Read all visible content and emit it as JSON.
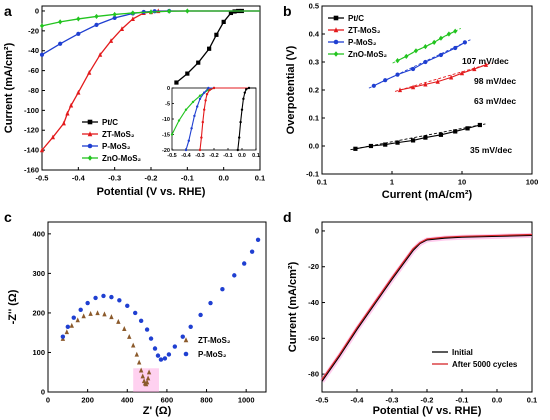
{
  "chart_data": [
    {
      "panel": "a",
      "type": "line",
      "xlabel": "Potential (V vs. RHE)",
      "ylabel": "Current (mA/cm²)",
      "xlim": [
        -0.5,
        0.1
      ],
      "ylim": [
        -160,
        5
      ],
      "xticks": [
        "-0.5",
        "-0.4",
        "-0.3",
        "-0.2",
        "-0.1",
        "0.0",
        "0.1"
      ],
      "yticks": [
        "-160",
        "-140",
        "-120",
        "-100",
        "-80",
        "-60",
        "-40",
        "-20",
        "0"
      ],
      "xtick_values": [
        -0.5,
        -0.4,
        -0.3,
        -0.2,
        -0.1,
        0.0,
        0.1
      ],
      "ytick_values": [
        -160,
        -140,
        -120,
        -100,
        -80,
        -60,
        -40,
        -20,
        0
      ],
      "legend_position": "bottom-left",
      "series": [
        {
          "name": "Pt/C",
          "color": "#000000",
          "marker": "square",
          "x": [
            -0.13,
            -0.1,
            -0.07,
            -0.04,
            -0.02,
            0.0,
            0.02,
            0.03,
            0.04,
            0.05
          ],
          "y": [
            -72,
            -63,
            -52,
            -38,
            -24,
            -11,
            -2,
            -0.5,
            0,
            0
          ]
        },
        {
          "name": "ZT-MoS₂",
          "color": "#e31a1c",
          "marker": "triangle",
          "x": [
            -0.5,
            -0.47,
            -0.44,
            -0.43,
            -0.42,
            -0.4,
            -0.37,
            -0.34,
            -0.31,
            -0.28,
            -0.25,
            -0.22,
            -0.2,
            -0.18,
            0.1
          ],
          "y": [
            -140,
            -127,
            -113,
            -103,
            -95,
            -82,
            -62,
            -44,
            -30,
            -18,
            -8,
            -2,
            -1,
            0,
            0
          ]
        },
        {
          "name": "P-MoS₂",
          "color": "#1f3fd1",
          "marker": "circle",
          "x": [
            -0.5,
            -0.45,
            -0.4,
            -0.35,
            -0.3,
            -0.25,
            -0.22,
            -0.19,
            -0.15,
            0.1
          ],
          "y": [
            -44,
            -33,
            -23,
            -14,
            -7,
            -2.5,
            -1,
            -0.3,
            0,
            0
          ]
        },
        {
          "name": "ZnO-MoS₂",
          "color": "#22c41f",
          "marker": "diamond",
          "x": [
            -0.5,
            -0.45,
            -0.4,
            -0.35,
            -0.3,
            -0.25,
            -0.2,
            -0.15,
            -0.1,
            0.1
          ],
          "y": [
            -15,
            -11,
            -8,
            -5.5,
            -3.5,
            -2,
            -1,
            -0.3,
            0,
            0
          ]
        }
      ],
      "inset": {
        "xlim": [
          -0.5,
          0.1
        ],
        "ylim": [
          -20,
          0
        ],
        "xticks": [
          "-0.5",
          "-0.4",
          "-0.3",
          "-0.2",
          "-0.1",
          "0.0",
          "0.1"
        ],
        "xtick_values": [
          -0.5,
          -0.4,
          -0.3,
          -0.2,
          -0.1,
          0.0,
          0.1
        ],
        "yticks": [
          "0",
          "-5",
          "-10",
          "-15",
          "-20"
        ],
        "ytick_values": [
          0,
          -5,
          -10,
          -15,
          -20
        ],
        "series": [
          {
            "name": "ZnO-MoS₂",
            "color": "#22c41f",
            "x": [
              -0.5,
              -0.45,
              -0.4,
              -0.35,
              -0.3,
              -0.27,
              -0.24,
              -0.22,
              -0.2,
              0.1
            ],
            "y": [
              -15,
              -10.5,
              -7,
              -4.5,
              -2.5,
              -1.5,
              -0.7,
              -0.3,
              0,
              0
            ]
          },
          {
            "name": "P-MoS₂",
            "color": "#1f3fd1",
            "x": [
              -0.4,
              -0.38,
              -0.36,
              -0.34,
              -0.32,
              -0.3,
              -0.27,
              -0.24,
              0.1
            ],
            "y": [
              -20,
              -17,
              -13,
              -9,
              -6,
              -3.5,
              -1.5,
              0,
              0
            ]
          },
          {
            "name": "ZT-MoS₂",
            "color": "#e31a1c",
            "x": [
              -0.3,
              -0.29,
              -0.28,
              -0.27,
              -0.26,
              -0.25,
              -0.23,
              -0.2,
              0.1
            ],
            "y": [
              -20,
              -16,
              -11,
              -7,
              -4,
              -2,
              -0.6,
              0,
              0
            ]
          },
          {
            "name": "Pt/C",
            "color": "#000000",
            "x": [
              -0.03,
              -0.02,
              -0.01,
              0.0,
              0.01,
              0.02,
              0.03,
              0.05,
              0.1
            ],
            "y": [
              -20,
              -16,
              -11,
              -7,
              -3.5,
              -1.5,
              -0.4,
              0,
              0
            ]
          }
        ]
      }
    },
    {
      "panel": "b",
      "type": "scatter",
      "xlabel": "Current (mA/cm²)",
      "ylabel": "Overpotential (V)",
      "xscale": "log",
      "xlim": [
        0.1,
        100
      ],
      "ylim": [
        -0.1,
        0.5
      ],
      "xticks": [
        "0.1",
        "1",
        "10",
        "100"
      ],
      "xtick_values": [
        0.1,
        1,
        10,
        100
      ],
      "yticks": [
        "-0.1",
        "0.0",
        "0.1",
        "0.2",
        "0.3",
        "0.4",
        "0.5"
      ],
      "ytick_values": [
        -0.1,
        0.0,
        0.1,
        0.2,
        0.3,
        0.4,
        0.5
      ],
      "legend_position": "top-left",
      "series": [
        {
          "name": "Pt/C",
          "color": "#000000",
          "x": [
            0.3,
            0.5,
            0.8,
            1.2,
            2,
            3,
            5,
            8,
            12,
            18
          ],
          "y": [
            -0.01,
            0.0,
            0.005,
            0.012,
            0.02,
            0.03,
            0.04,
            0.052,
            0.063,
            0.075
          ],
          "slope_label": "35 mV/dec"
        },
        {
          "name": "ZT-MoS₂",
          "color": "#e31a1c",
          "x": [
            1.3,
            2,
            3,
            4.5,
            7,
            10,
            15,
            22
          ],
          "y": [
            0.2,
            0.21,
            0.22,
            0.23,
            0.245,
            0.26,
            0.275,
            0.29
          ],
          "slope_label": "63 mV/dec"
        },
        {
          "name": "P-MoS₂",
          "color": "#1f3fd1",
          "x": [
            0.55,
            0.8,
            1.2,
            2,
            3,
            5,
            8,
            11
          ],
          "y": [
            0.215,
            0.235,
            0.255,
            0.275,
            0.3,
            0.325,
            0.35,
            0.37
          ],
          "slope_label": "98 mV/dec"
        },
        {
          "name": "ZnO-MoS₂",
          "color": "#22c41f",
          "x": [
            1.2,
            1.6,
            2.2,
            3,
            4,
            5,
            6.5,
            8
          ],
          "y": [
            0.305,
            0.32,
            0.34,
            0.355,
            0.37,
            0.385,
            0.4,
            0.41
          ],
          "slope_label": "107 mV/dec"
        }
      ]
    },
    {
      "panel": "c",
      "type": "scatter",
      "xlabel": "Z' (Ω)",
      "ylabel": "-Z'' (Ω)",
      "xlim": [
        0,
        1100
      ],
      "ylim": [
        0,
        430
      ],
      "xticks": [
        "0",
        "200",
        "400",
        "600",
        "800",
        "1000"
      ],
      "xtick_values": [
        0,
        200,
        400,
        600,
        800,
        1000
      ],
      "yticks": [
        "0",
        "100",
        "200",
        "300",
        "400"
      ],
      "ytick_values": [
        0,
        100,
        200,
        300,
        400
      ],
      "legend_position": "bottom-right",
      "series": [
        {
          "name": "ZT-MoS₂",
          "color": "#8b5a2b",
          "marker": "triangle",
          "x": [
            75,
            95,
            120,
            150,
            180,
            215,
            250,
            285,
            320,
            355,
            385,
            410,
            430,
            448,
            460,
            470,
            478,
            485,
            490,
            495,
            500,
            505,
            510
          ],
          "y": [
            135,
            152,
            168,
            182,
            192,
            198,
            200,
            197,
            190,
            178,
            160,
            140,
            118,
            95,
            75,
            55,
            40,
            28,
            22,
            20,
            25,
            35,
            50
          ]
        },
        {
          "name": "P-MoS₂",
          "color": "#1f3fd1",
          "marker": "circle",
          "x": [
            75,
            100,
            130,
            165,
            200,
            240,
            280,
            320,
            360,
            400,
            440,
            470,
            500,
            520,
            540,
            555,
            570,
            590,
            610,
            640,
            680,
            720,
            770,
            820,
            880,
            940,
            990,
            1030,
            1060
          ],
          "y": [
            140,
            165,
            188,
            208,
            225,
            238,
            243,
            240,
            232,
            218,
            200,
            180,
            158,
            135,
            110,
            92,
            82,
            85,
            95,
            115,
            140,
            165,
            195,
            225,
            260,
            295,
            325,
            355,
            385
          ]
        }
      ]
    },
    {
      "panel": "d",
      "type": "line",
      "xlabel": "Potential (V vs. RHE)",
      "ylabel": "Current (mA/cm²)",
      "xlim": [
        -0.5,
        0.1
      ],
      "ylim": [
        -90,
        5
      ],
      "xticks": [
        "-0.5",
        "-0.4",
        "-0.3",
        "-0.2",
        "-0.1",
        "0.0",
        "0.1"
      ],
      "xtick_values": [
        -0.5,
        -0.4,
        -0.3,
        -0.2,
        -0.1,
        0.0,
        0.1
      ],
      "yticks": [
        "-80",
        "-60",
        "-40",
        "-20",
        "0"
      ],
      "ytick_values": [
        -80,
        -60,
        -40,
        -20,
        0
      ],
      "legend_position": "bottom-right",
      "series": [
        {
          "name": "Initial",
          "color": "#000000",
          "x": [
            -0.5,
            -0.45,
            -0.4,
            -0.35,
            -0.3,
            -0.27,
            -0.24,
            -0.22,
            -0.2,
            -0.15,
            -0.1,
            0.0,
            0.1
          ],
          "y": [
            -84,
            -70,
            -55,
            -41,
            -27,
            -19,
            -11,
            -7,
            -5,
            -4,
            -3.5,
            -3,
            -2.5
          ]
        },
        {
          "name": "After 5000 cycles",
          "color": "#d62728",
          "x": [
            -0.5,
            -0.45,
            -0.4,
            -0.35,
            -0.3,
            -0.27,
            -0.24,
            -0.22,
            -0.2,
            -0.15,
            -0.1,
            0.0,
            0.1
          ],
          "y": [
            -83,
            -69,
            -54,
            -40,
            -26,
            -18,
            -10,
            -6.5,
            -4.5,
            -3.5,
            -3,
            -2.5,
            -2
          ]
        }
      ]
    }
  ],
  "panel_letters": {
    "a": "a",
    "b": "b",
    "c": "c",
    "d": "d"
  },
  "colors": {
    "highlight_pink": "#ff99dd"
  }
}
